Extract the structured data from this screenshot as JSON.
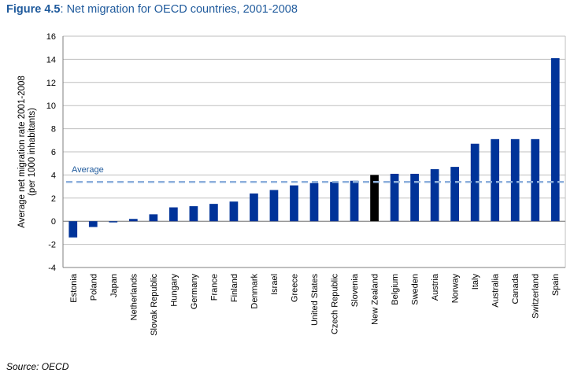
{
  "figure": {
    "label": "Figure 4.5",
    "title": "Net migration for OECD countries, 2001-2008",
    "source": "Source: OECD"
  },
  "chart_data": {
    "type": "bar",
    "title": "Net migration for OECD countries, 2001-2008",
    "xlabel": "",
    "ylabel": [
      "Average net migration rate 2001-2008",
      "(per 1000 inhabitants)"
    ],
    "ylim": [
      -4,
      16
    ],
    "yticks": [
      -4,
      -2,
      0,
      2,
      4,
      6,
      8,
      10,
      12,
      14,
      16
    ],
    "grid": true,
    "categories": [
      "Estonia",
      "Poland",
      "Japan",
      "Netherlands",
      "Slovak Republic",
      "Hungary",
      "Germany",
      "France",
      "Finland",
      "Denmark",
      "Israel",
      "Greece",
      "United States",
      "Czech Republic",
      "Slovenia",
      "New Zealand",
      "Belgium",
      "Sweden",
      "Austria",
      "Norway",
      "Italy",
      "Australia",
      "Canada",
      "Switzerland",
      "Spain"
    ],
    "values": [
      -1.4,
      -0.5,
      -0.1,
      0.2,
      0.6,
      1.2,
      1.3,
      1.5,
      1.7,
      2.4,
      2.7,
      3.1,
      3.3,
      3.4,
      3.5,
      4.0,
      4.1,
      4.1,
      4.5,
      4.7,
      6.7,
      7.1,
      7.1,
      7.1,
      14.1
    ],
    "highlight": "New Zealand",
    "average": {
      "label": "Average",
      "value": 3.4
    },
    "colors": {
      "bar": "#003399",
      "highlight": "#000000",
      "average_line": "#8eb0dc",
      "grid": "#bfbfbf",
      "title": "#1f5a9c"
    }
  }
}
